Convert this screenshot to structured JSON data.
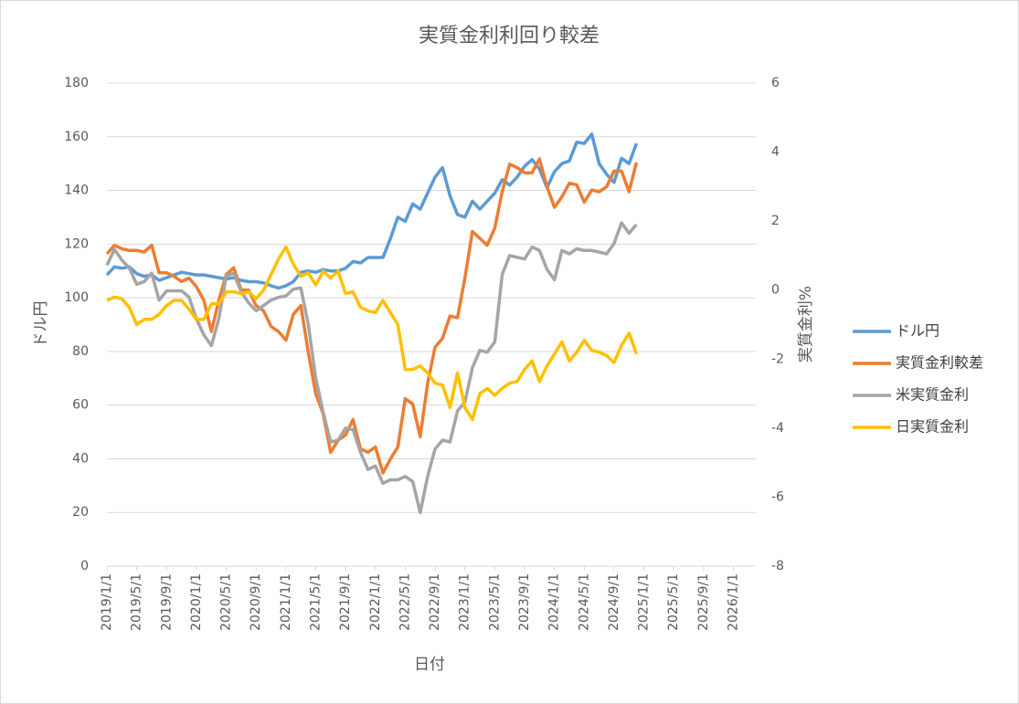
{
  "chart_data": {
    "type": "line",
    "title": "実質金利利回り較差",
    "x_label": "日付",
    "y_label": "ドル円",
    "y2_label": "実質金利%",
    "x": [
      "2019/1/1",
      "2019/2/1",
      "2019/3/1",
      "2019/4/1",
      "2019/5/1",
      "2019/6/1",
      "2019/7/1",
      "2019/8/1",
      "2019/9/1",
      "2019/10/1",
      "2019/11/1",
      "2019/12/1",
      "2020/1/1",
      "2020/2/1",
      "2020/3/1",
      "2020/4/1",
      "2020/5/1",
      "2020/6/1",
      "2020/7/1",
      "2020/8/1",
      "2020/9/1",
      "2020/10/1",
      "2020/11/1",
      "2020/12/1",
      "2021/1/1",
      "2021/2/1",
      "2021/3/1",
      "2021/4/1",
      "2021/5/1",
      "2021/6/1",
      "2021/7/1",
      "2021/8/1",
      "2021/9/1",
      "2021/10/1",
      "2021/11/1",
      "2021/12/1",
      "2022/1/1",
      "2022/2/1",
      "2022/3/1",
      "2022/4/1",
      "2022/5/1",
      "2022/6/1",
      "2022/7/1",
      "2022/8/1",
      "2022/9/1",
      "2022/10/1",
      "2022/11/1",
      "2022/12/1",
      "2023/1/1",
      "2023/2/1",
      "2023/3/1",
      "2023/4/1",
      "2023/5/1",
      "2023/6/1",
      "2023/7/1",
      "2023/8/1",
      "2023/9/1",
      "2023/10/1",
      "2023/11/1",
      "2023/12/1",
      "2024/1/1",
      "2024/2/1",
      "2024/3/1",
      "2024/4/1",
      "2024/5/1",
      "2024/6/1",
      "2024/7/1",
      "2024/8/1",
      "2024/9/1",
      "2024/10/1",
      "2024/11/1",
      "2024/12/1"
    ],
    "xlim": [
      "2019/1/1",
      "2026/4/1"
    ],
    "xticks": [
      "2019/1/1",
      "2019/5/1",
      "2019/9/1",
      "2020/1/1",
      "2020/5/1",
      "2020/9/1",
      "2021/1/1",
      "2021/5/1",
      "2021/9/1",
      "2022/1/1",
      "2022/5/1",
      "2022/9/1",
      "2023/1/1",
      "2023/5/1",
      "2023/9/1",
      "2024/1/1",
      "2024/5/1",
      "2024/9/1",
      "2025/1/1",
      "2025/5/1",
      "2025/9/1",
      "2026/1/1"
    ],
    "ylim": [
      0,
      180
    ],
    "yticks": [
      0,
      20,
      40,
      60,
      80,
      100,
      120,
      140,
      160,
      180
    ],
    "y2lim": [
      -8,
      6
    ],
    "y2ticks": [
      -8,
      -6,
      -4,
      -2,
      0,
      2,
      4,
      6
    ],
    "grid": true,
    "legend": "right",
    "series": [
      {
        "name": "ドル円",
        "color": "#5b9bd5",
        "values": [
          108.5,
          111.5,
          111,
          111.5,
          109,
          108,
          108.5,
          106.5,
          107.5,
          108.5,
          109.5,
          109,
          108.5,
          108.5,
          108,
          107.5,
          107,
          107.5,
          106.5,
          106,
          106,
          105.5,
          104.5,
          103.6,
          104.5,
          106,
          109.5,
          110,
          109.5,
          110.5,
          110,
          110,
          111,
          113.5,
          113,
          115,
          115,
          115,
          122,
          130,
          128.5,
          135,
          133,
          139,
          145,
          148.5,
          138,
          131,
          130,
          136,
          133,
          136,
          139,
          144,
          142,
          145,
          149,
          151.5,
          148,
          141,
          147,
          150,
          151,
          158,
          157.5,
          161,
          150,
          146,
          143,
          152,
          150,
          157.5
        ]
      },
      {
        "name": "実質金利較差",
        "color": "#ed7d31",
        "axis": "y2",
        "values": [
          1.05,
          1.3,
          1.2,
          1.15,
          1.15,
          1.1,
          1.3,
          0.5,
          0.5,
          0.4,
          0.25,
          0.35,
          0.1,
          -0.3,
          -1.2,
          -0.3,
          0.45,
          0.65,
          0.0,
          0.0,
          -0.45,
          -0.6,
          -1.05,
          -1.2,
          -1.45,
          -0.7,
          -0.45,
          -1.8,
          -3.0,
          -3.6,
          -4.7,
          -4.35,
          -4.2,
          -3.75,
          -4.6,
          -4.7,
          -4.55,
          -5.3,
          -4.9,
          -4.55,
          -3.15,
          -3.3,
          -4.25,
          -2.7,
          -1.65,
          -1.4,
          -0.75,
          -0.8,
          0.35,
          1.7,
          1.5,
          1.3,
          1.8,
          2.85,
          3.65,
          3.55,
          3.4,
          3.4,
          3.8,
          3.0,
          2.4,
          2.7,
          3.1,
          3.05,
          2.55,
          2.9,
          2.85,
          3.0,
          3.45,
          3.45,
          2.85,
          3.7
        ]
      },
      {
        "name": "米実質金利",
        "color": "#a5a5a5",
        "axis": "y2",
        "values": [
          0.72,
          1.18,
          0.87,
          0.64,
          0.17,
          0.25,
          0.49,
          -0.29,
          -0.02,
          -0.02,
          -0.02,
          -0.2,
          -0.83,
          -1.3,
          -1.61,
          -0.83,
          0.41,
          0.49,
          -0.05,
          -0.37,
          -0.6,
          -0.45,
          -0.29,
          -0.21,
          -0.17,
          0.03,
          0.06,
          -0.99,
          -2.55,
          -3.55,
          -4.4,
          -4.35,
          -4.0,
          -4.05,
          -4.7,
          -5.2,
          -5.1,
          -5.6,
          -5.5,
          -5.5,
          -5.4,
          -5.55,
          -6.45,
          -5.4,
          -4.6,
          -4.35,
          -4.4,
          -3.5,
          -3.25,
          -2.25,
          -1.75,
          -1.8,
          -1.5,
          0.45,
          1.0,
          0.95,
          0.9,
          1.25,
          1.15,
          0.6,
          0.3,
          1.15,
          1.05,
          1.2,
          1.15,
          1.15,
          1.1,
          1.05,
          1.35,
          1.95,
          1.65,
          1.9
        ]
      },
      {
        "name": "日実質金利",
        "color": "#ffc000",
        "axis": "y2",
        "values": [
          -0.3,
          -0.2,
          -0.25,
          -0.5,
          -1.0,
          -0.85,
          -0.85,
          -0.7,
          -0.45,
          -0.3,
          -0.3,
          -0.55,
          -0.85,
          -0.85,
          -0.4,
          -0.4,
          -0.05,
          -0.05,
          -0.1,
          -0.05,
          -0.25,
          0.0,
          0.45,
          0.9,
          1.25,
          0.75,
          0.4,
          0.5,
          0.15,
          0.55,
          0.35,
          0.55,
          -0.1,
          -0.05,
          -0.5,
          -0.6,
          -0.65,
          -0.3,
          -0.65,
          -1.0,
          -2.3,
          -2.3,
          -2.2,
          -2.4,
          -2.7,
          -2.75,
          -3.4,
          -2.4,
          -3.4,
          -3.75,
          -3.0,
          -2.85,
          -3.05,
          -2.85,
          -2.7,
          -2.65,
          -2.3,
          -2.05,
          -2.65,
          -2.2,
          -1.85,
          -1.5,
          -2.05,
          -1.8,
          -1.45,
          -1.75,
          -1.8,
          -1.9,
          -2.1,
          -1.6,
          -1.25,
          -1.85
        ]
      }
    ]
  }
}
